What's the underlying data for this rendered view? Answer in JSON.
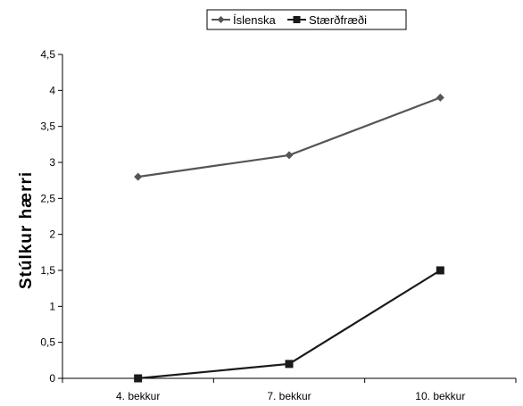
{
  "chart_data": {
    "type": "line",
    "title": "",
    "xlabel": "",
    "ylabel": "Stúlkur hærri",
    "categories": [
      "4. bekkur",
      "7. bekkur",
      "10. bekkur"
    ],
    "ylim": [
      0,
      4.5
    ],
    "yticks": [
      "0",
      "0,5",
      "1",
      "1,5",
      "2",
      "2,5",
      "3",
      "3,5",
      "4",
      "4,5"
    ],
    "yticks_values": [
      0,
      0.5,
      1,
      1.5,
      2,
      2.5,
      3,
      3.5,
      4,
      4.5
    ],
    "grid": false,
    "legend_position": "top-center",
    "series": [
      {
        "name": "Íslenska",
        "values": [
          2.8,
          3.1,
          3.9
        ],
        "color": "#555555",
        "marker": "diamond"
      },
      {
        "name": "Stærðfræði",
        "values": [
          0.0,
          0.2,
          1.5
        ],
        "color": "#1a1a1a",
        "marker": "square"
      }
    ]
  }
}
